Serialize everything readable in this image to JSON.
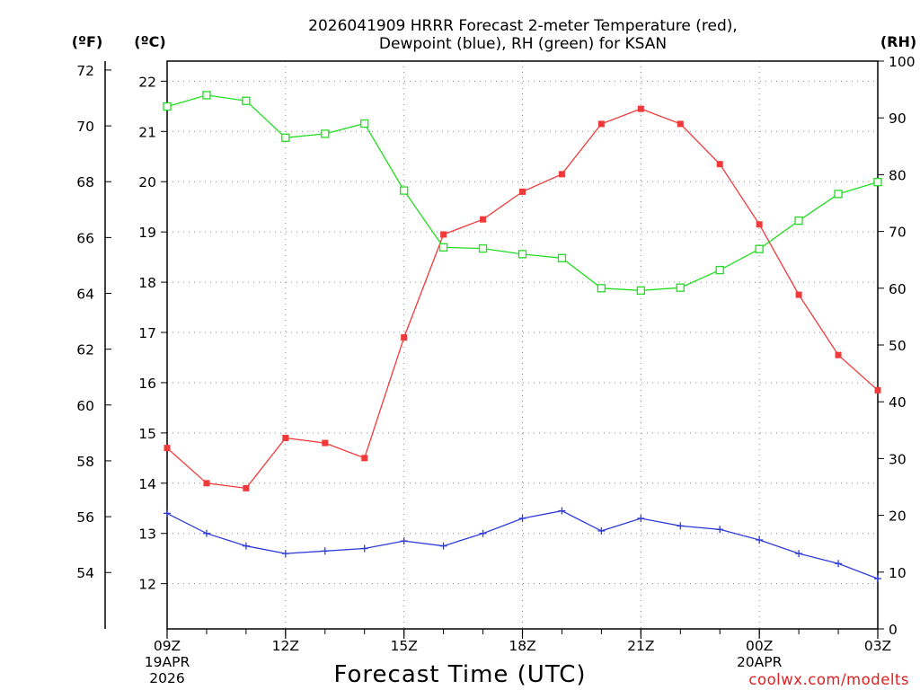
{
  "chart_data": {
    "type": "line",
    "title": "2026041909 HRRR Forecast 2-meter Temperature (red),",
    "subtitle": "Dewpoint (blue), RH (green) for KSAN",
    "xlabel": "Forecast Time (UTC)",
    "credit": "coolwx.com/modelts",
    "units": {
      "fahrenheit": "(ºF)",
      "celsius": "(ºC)",
      "rh": "(RH)"
    },
    "x": [
      9,
      10,
      11,
      12,
      13,
      14,
      15,
      16,
      17,
      18,
      19,
      20,
      21,
      22,
      23,
      24,
      25,
      26,
      27
    ],
    "xlim": [
      9,
      27
    ],
    "x_ticks": [
      {
        "x": 9,
        "label": "09Z",
        "sub1": "19APR",
        "sub2": "2026"
      },
      {
        "x": 12,
        "label": "12Z"
      },
      {
        "x": 15,
        "label": "15Z"
      },
      {
        "x": 18,
        "label": "18Z"
      },
      {
        "x": 21,
        "label": "21Z"
      },
      {
        "x": 24,
        "label": "00Z",
        "sub1": "20APR"
      },
      {
        "x": 27,
        "label": "03Z"
      }
    ],
    "celsius_axis": {
      "range": [
        11.1,
        22.4
      ],
      "ticks": [
        12,
        13,
        14,
        15,
        16,
        17,
        18,
        19,
        20,
        21,
        22
      ]
    },
    "fahrenheit_axis": {
      "ticks": [
        54,
        56,
        58,
        60,
        62,
        64,
        66,
        68,
        70,
        72
      ]
    },
    "rh_axis": {
      "range": [
        0,
        100
      ],
      "ticks": [
        0,
        10,
        20,
        30,
        40,
        50,
        60,
        70,
        80,
        90,
        100
      ]
    },
    "series": [
      {
        "name": "2-meter Temperature",
        "axis": "celsius",
        "color": "#f03a3a",
        "marker": "filled-square",
        "values": [
          14.7,
          14.0,
          13.9,
          14.9,
          14.8,
          14.5,
          16.9,
          18.95,
          19.25,
          19.8,
          20.15,
          21.15,
          21.45,
          21.15,
          20.35,
          19.15,
          17.75,
          16.55,
          15.85
        ]
      },
      {
        "name": "Dewpoint",
        "axis": "celsius",
        "color": "#2e3bdc",
        "marker": "plus",
        "values": [
          13.4,
          13.0,
          12.75,
          12.6,
          12.65,
          12.7,
          12.85,
          12.75,
          13.0,
          13.3,
          13.45,
          13.05,
          13.3,
          13.15,
          13.08,
          12.87,
          12.6,
          12.4,
          12.1
        ]
      },
      {
        "name": "RH",
        "axis": "rh",
        "color": "#22dd22",
        "marker": "open-square",
        "values": [
          92,
          94,
          93,
          86.5,
          87.2,
          89,
          77.2,
          67.2,
          67,
          66,
          65.3,
          60,
          59.6,
          60.1,
          63.2,
          66.9,
          71.9,
          76.6,
          78.7
        ]
      }
    ]
  }
}
